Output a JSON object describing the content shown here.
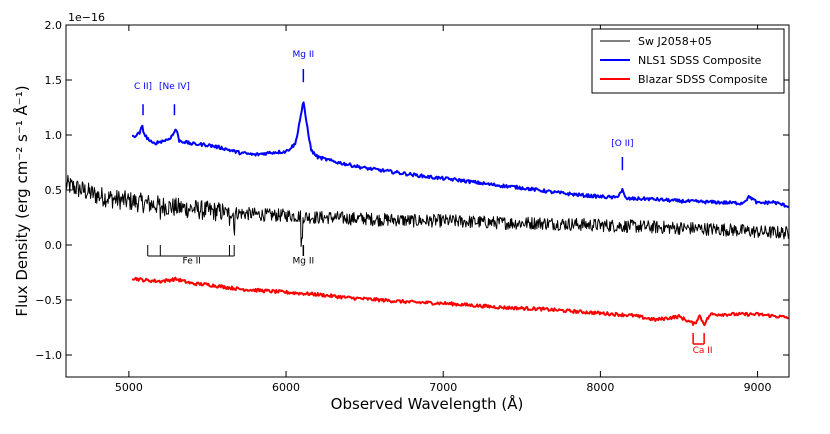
{
  "chart_data": {
    "type": "line",
    "title": "",
    "xlabel": "Observed Wavelength (Å)",
    "ylabel": "Flux Density (erg cm⁻² s⁻¹ Å⁻¹)",
    "y_offset_label": "1e−16",
    "xlim": [
      4600,
      9200
    ],
    "ylim": [
      -1.2,
      2.0
    ],
    "x_ticks": [
      5000,
      6000,
      7000,
      8000,
      9000
    ],
    "x_tick_labels": [
      "5000",
      "6000",
      "7000",
      "8000",
      "9000"
    ],
    "y_ticks": [
      -1.0,
      -0.5,
      0.0,
      0.5,
      1.0,
      1.5,
      2.0
    ],
    "y_tick_labels": [
      "−1.0",
      "−0.5",
      "0.0",
      "0.5",
      "1.0",
      "1.5",
      "2.0"
    ],
    "legend": {
      "position": "top-right",
      "entries": [
        {
          "label": "Sw J2058+05",
          "color": "#000000"
        },
        {
          "label": "NLS1 SDSS Composite",
          "color": "#0000ff"
        },
        {
          "label": "Blazar SDSS Composite",
          "color": "#ff0000"
        }
      ]
    },
    "series": [
      {
        "name": "Sw J2058+05",
        "color": "#000000",
        "x": [
          4600,
          4700,
          4800,
          4900,
          5000,
          5100,
          5200,
          5300,
          5400,
          5500,
          5600,
          5700,
          5800,
          5900,
          6000,
          6100,
          6200,
          6300,
          6400,
          6500,
          6600,
          6700,
          6800,
          6900,
          7000,
          7200,
          7400,
          7600,
          7800,
          8000,
          8200,
          8400,
          8600,
          8800,
          9000,
          9200
        ],
        "values": [
          0.55,
          0.5,
          0.45,
          0.42,
          0.4,
          0.38,
          0.36,
          0.34,
          0.33,
          0.31,
          0.3,
          0.29,
          0.28,
          0.27,
          0.27,
          0.26,
          0.25,
          0.25,
          0.24,
          0.24,
          0.23,
          0.23,
          0.22,
          0.22,
          0.22,
          0.21,
          0.2,
          0.2,
          0.19,
          0.18,
          0.17,
          0.16,
          0.15,
          0.14,
          0.12,
          0.11
        ]
      },
      {
        "name": "NLS1 SDSS Composite",
        "color": "#0000ff",
        "x": [
          5020,
          5050,
          5070,
          5085,
          5100,
          5150,
          5200,
          5250,
          5280,
          5300,
          5320,
          5400,
          5500,
          5600,
          5700,
          5800,
          5900,
          6000,
          6060,
          6090,
          6110,
          6130,
          6160,
          6200,
          6300,
          6400,
          6500,
          6700,
          6900,
          7100,
          7300,
          7500,
          7700,
          7900,
          8100,
          8140,
          8160,
          8300,
          8500,
          8700,
          8900,
          8950,
          9000,
          9100,
          9200
        ],
        "values": [
          0.98,
          1.0,
          1.02,
          1.08,
          1.0,
          0.92,
          0.94,
          0.96,
          1.0,
          1.06,
          0.95,
          0.92,
          0.91,
          0.88,
          0.84,
          0.82,
          0.84,
          0.85,
          0.92,
          1.15,
          1.3,
          1.12,
          0.86,
          0.8,
          0.76,
          0.73,
          0.7,
          0.66,
          0.62,
          0.59,
          0.55,
          0.52,
          0.48,
          0.45,
          0.43,
          0.5,
          0.42,
          0.42,
          0.4,
          0.39,
          0.38,
          0.44,
          0.38,
          0.39,
          0.35
        ]
      },
      {
        "name": "Blazar SDSS Composite",
        "color": "#ff0000",
        "x": [
          5020,
          5100,
          5200,
          5300,
          5400,
          5500,
          5600,
          5700,
          5800,
          6000,
          6200,
          6400,
          6600,
          6800,
          7000,
          7200,
          7400,
          7600,
          7800,
          8000,
          8200,
          8350,
          8500,
          8600,
          8630,
          8660,
          8700,
          8800,
          9000,
          9200
        ],
        "values": [
          -0.3,
          -0.32,
          -0.33,
          -0.31,
          -0.35,
          -0.36,
          -0.38,
          -0.4,
          -0.41,
          -0.43,
          -0.45,
          -0.48,
          -0.5,
          -0.52,
          -0.53,
          -0.55,
          -0.57,
          -0.58,
          -0.6,
          -0.62,
          -0.64,
          -0.68,
          -0.65,
          -0.72,
          -0.64,
          -0.72,
          -0.63,
          -0.63,
          -0.63,
          -0.66
        ]
      }
    ],
    "annotations": [
      {
        "text": "C II]",
        "x": 5090,
        "y": 1.42,
        "color": "#0000ff",
        "marker_x": 5090,
        "marker_y": [
          1.18,
          1.28
        ]
      },
      {
        "text": "[Ne IV]",
        "x": 5290,
        "y": 1.42,
        "color": "#0000ff",
        "marker_x": 5290,
        "marker_y": [
          1.18,
          1.28
        ]
      },
      {
        "text": "Mg II",
        "x": 6110,
        "y": 1.71,
        "color": "#0000ff",
        "marker_x": 6110,
        "marker_y": [
          1.48,
          1.6
        ]
      },
      {
        "text": "[O II]",
        "x": 8140,
        "y": 0.9,
        "color": "#0000ff",
        "marker_x": 8140,
        "marker_y": [
          0.68,
          0.8
        ]
      },
      {
        "text": "Fe II",
        "x": 5400,
        "y": -0.17,
        "color": "#000000"
      },
      {
        "text": "Mg II",
        "x": 6110,
        "y": -0.17,
        "color": "#000000"
      },
      {
        "text": "Ca II",
        "x": 8650,
        "y": -0.98,
        "color": "#ff0000"
      }
    ]
  }
}
